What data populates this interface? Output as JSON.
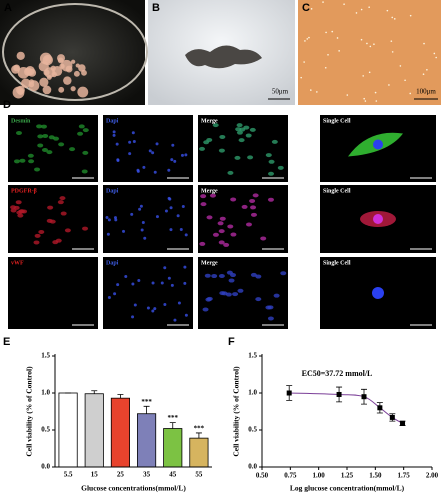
{
  "panels": {
    "labels": [
      "A",
      "B",
      "C",
      "D"
    ],
    "scale_bars": [
      "50μm",
      "100μm"
    ],
    "d_grid": [
      [
        "Desmin",
        "Dapi",
        "Merge",
        "Single Cell"
      ],
      [
        "PDGFR-β",
        "Dapi",
        "Merge",
        "Single Cell"
      ],
      [
        "vWF",
        "Dapi",
        "Merge",
        "Single Cell"
      ]
    ]
  },
  "chart_data": [
    {
      "type": "bar",
      "panel_label": "E",
      "x_label": "Glucose concentrations(mmol/L)",
      "y_label": "Cell viability (% of Control)",
      "categories": [
        "5.5",
        "15",
        "25",
        "35",
        "45",
        "55"
      ],
      "values": [
        1.0,
        0.99,
        0.93,
        0.72,
        0.52,
        0.39
      ],
      "errors": [
        0.0,
        0.04,
        0.05,
        0.1,
        0.08,
        0.07
      ],
      "colors": [
        "#ffffff",
        "#cfcfcf",
        "#e8432d",
        "#7e80b8",
        "#7cc243",
        "#d6b45f"
      ],
      "significance": [
        {
          "index": 3,
          "label": "***"
        },
        {
          "index": 4,
          "label": "***"
        },
        {
          "index": 5,
          "label": "***"
        }
      ],
      "ylim": [
        0,
        1.5
      ],
      "yticks": [
        {
          "value": 0,
          "label": "0.0"
        },
        {
          "value": 0.5,
          "label": "0.5"
        },
        {
          "value": 1,
          "label": "1.0"
        },
        {
          "value": 1.5,
          "label": "1.5"
        }
      ]
    },
    {
      "type": "line",
      "panel_label": "F",
      "x_label": "Log glucose concentration(mmol/L)",
      "y_label": "Cell viability (% of Control)",
      "annotation": "EC50=37.72 mmol/L",
      "color": "#7b3f98",
      "x": [
        0.74,
        1.18,
        1.4,
        1.54,
        1.65,
        1.74
      ],
      "values": [
        1.0,
        0.98,
        0.95,
        0.8,
        0.67,
        0.59
      ],
      "errors": [
        0.1,
        0.1,
        0.1,
        0.07,
        0.05,
        0.03
      ],
      "xlim": [
        0.5,
        2.0
      ],
      "xticks": [
        {
          "value": 0.5,
          "label": "0.50"
        },
        {
          "value": 0.75,
          "label": "0.75"
        },
        {
          "value": 1,
          "label": "1.00"
        },
        {
          "value": 1.25,
          "label": "1.25"
        },
        {
          "value": 1.5,
          "label": "1.50"
        },
        {
          "value": 1.75,
          "label": "1.75"
        },
        {
          "value": 2,
          "label": "2.00"
        }
      ],
      "ylim": [
        0,
        1.5
      ],
      "yticks": [
        {
          "value": 0,
          "label": "0.0"
        },
        {
          "value": 0.5,
          "label": "0.5"
        },
        {
          "value": 1,
          "label": "1.0"
        },
        {
          "value": 1.5,
          "label": "1.5"
        }
      ]
    }
  ]
}
